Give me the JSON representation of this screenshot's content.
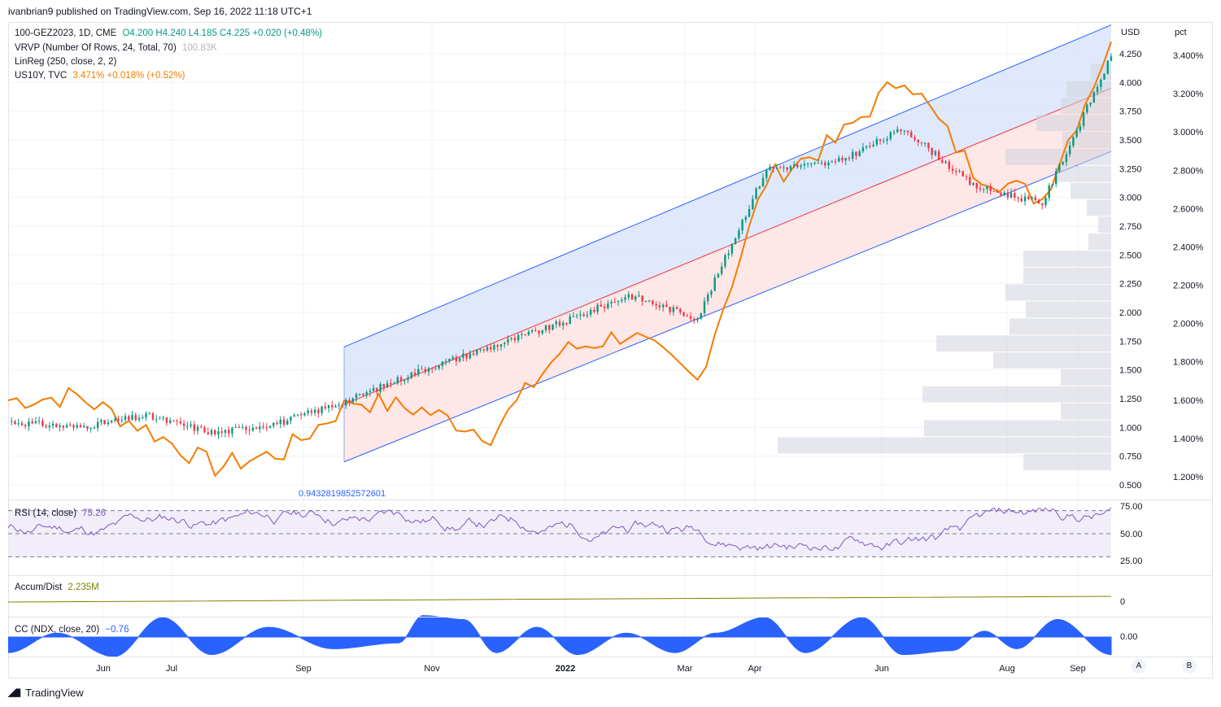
{
  "header": "ivanbrian9 published on TradingView.com, Sep 16, 2022 11:18 UTC+1",
  "legend": {
    "symbol": "100-GEZ2023, 1D, CME",
    "ohlc": "O4.200  H4.240  L4.185  C4.225  +0.020 (+0.48%)",
    "vrvp": "VRVP (Number Of Rows, 24, Total, 70)",
    "vrvp_value": "100.83K",
    "linreg": "LinReg (250, close, 2, 2)",
    "us10y_label": "US10Y, TVC",
    "us10y_values": "3.471%  +0.018% (+0.52%)"
  },
  "axes": {
    "usd_title": "USD",
    "pct_title": "pct",
    "usd_ticks": [
      "4.250",
      "4.000",
      "3.750",
      "3.500",
      "3.250",
      "3.000",
      "2.750",
      "2.500",
      "2.250",
      "2.000",
      "1.750",
      "1.500",
      "1.250",
      "1.000",
      "0.750",
      "0.500"
    ],
    "pct_ticks": [
      "3.400%",
      "3.200%",
      "3.000%",
      "2.800%",
      "2.600%",
      "2.400%",
      "2.200%",
      "2.000%",
      "1.800%",
      "1.600%",
      "1.400%",
      "1.200%"
    ],
    "time_ticks": [
      "Jun",
      "Jul",
      "Sep",
      "Nov",
      "2022",
      "Mar",
      "Apr",
      "Jun",
      "Aug",
      "Sep"
    ]
  },
  "linreg_label": "0.9432819852572601",
  "rsi": {
    "label": "RSI (14, close)",
    "value": "75.26",
    "ticks": [
      "75.00",
      "50.00",
      "25.00"
    ]
  },
  "accum": {
    "label": "Accum/Dist",
    "value": "2.235M",
    "tick": "0"
  },
  "cc": {
    "label": "CC (NDX, close, 20)",
    "value": "−0.76",
    "tick": "0.00"
  },
  "footer": {
    "brand": "TradingView",
    "btn_a": "A",
    "btn_b": "B"
  },
  "colors": {
    "up": "#089981",
    "down": "#f23645",
    "us10y": "#f57c00",
    "channel_upper_fill": "#dde6fc",
    "channel_lower_fill": "#fde4e4",
    "channel_line": "#2962ff",
    "mid_line": "#f23645",
    "rsi": "#7e57c2",
    "rsi_fill": "#ede7f6",
    "accum": "#808000",
    "cc": "#2962ff"
  },
  "chart_data": {
    "type": "line",
    "title": "100-GEZ2023, 1D, CME",
    "ylabel": "USD",
    "ylim": [
      0.45,
      4.5
    ],
    "y2label": "pct",
    "y2lim": [
      1.1,
      3.5
    ],
    "linreg_channel": {
      "start": {
        "date": "Sep 2021",
        "mid": 1.2,
        "upper": 1.7,
        "lower": 0.7
      },
      "end": {
        "date": "Sep 2022",
        "mid": 3.95,
        "upper": 4.5,
        "lower": 3.4
      }
    },
    "series": [
      {
        "name": "100-GEZ2023",
        "axis": "USD",
        "x": [
          "May 2021",
          "Jun 2021",
          "Jul 2021",
          "Aug 2021",
          "Sep 2021",
          "Oct 2021",
          "Nov 2021",
          "Dec 2021",
          "Jan 2022",
          "Feb 2022",
          "Mar 2022",
          "Apr 2022",
          "May 2022",
          "Jun 2022",
          "Jul 2022",
          "Aug 2022",
          "Sep 2022"
        ],
        "values": [
          1.05,
          1.0,
          1.1,
          0.95,
          1.05,
          1.25,
          1.5,
          1.7,
          1.9,
          2.15,
          1.95,
          3.25,
          3.3,
          3.6,
          3.1,
          2.95,
          4.225
        ]
      },
      {
        "name": "US10Y",
        "axis": "pct",
        "x": [
          "May 2021",
          "Jun 2021",
          "Jul 2021",
          "Aug 2021",
          "Sep 2021",
          "Oct 2021",
          "Nov 2021",
          "Dec 2021",
          "Jan 2022",
          "Feb 2022",
          "Mar 2022",
          "Apr 2022",
          "May 2022",
          "Jun 2022",
          "Jul 2022",
          "Aug 2022",
          "Sep 2022"
        ],
        "values": [
          1.6,
          1.62,
          1.45,
          1.25,
          1.33,
          1.6,
          1.55,
          1.42,
          1.85,
          1.95,
          1.7,
          2.75,
          2.95,
          3.3,
          2.8,
          2.65,
          3.471
        ]
      }
    ]
  }
}
